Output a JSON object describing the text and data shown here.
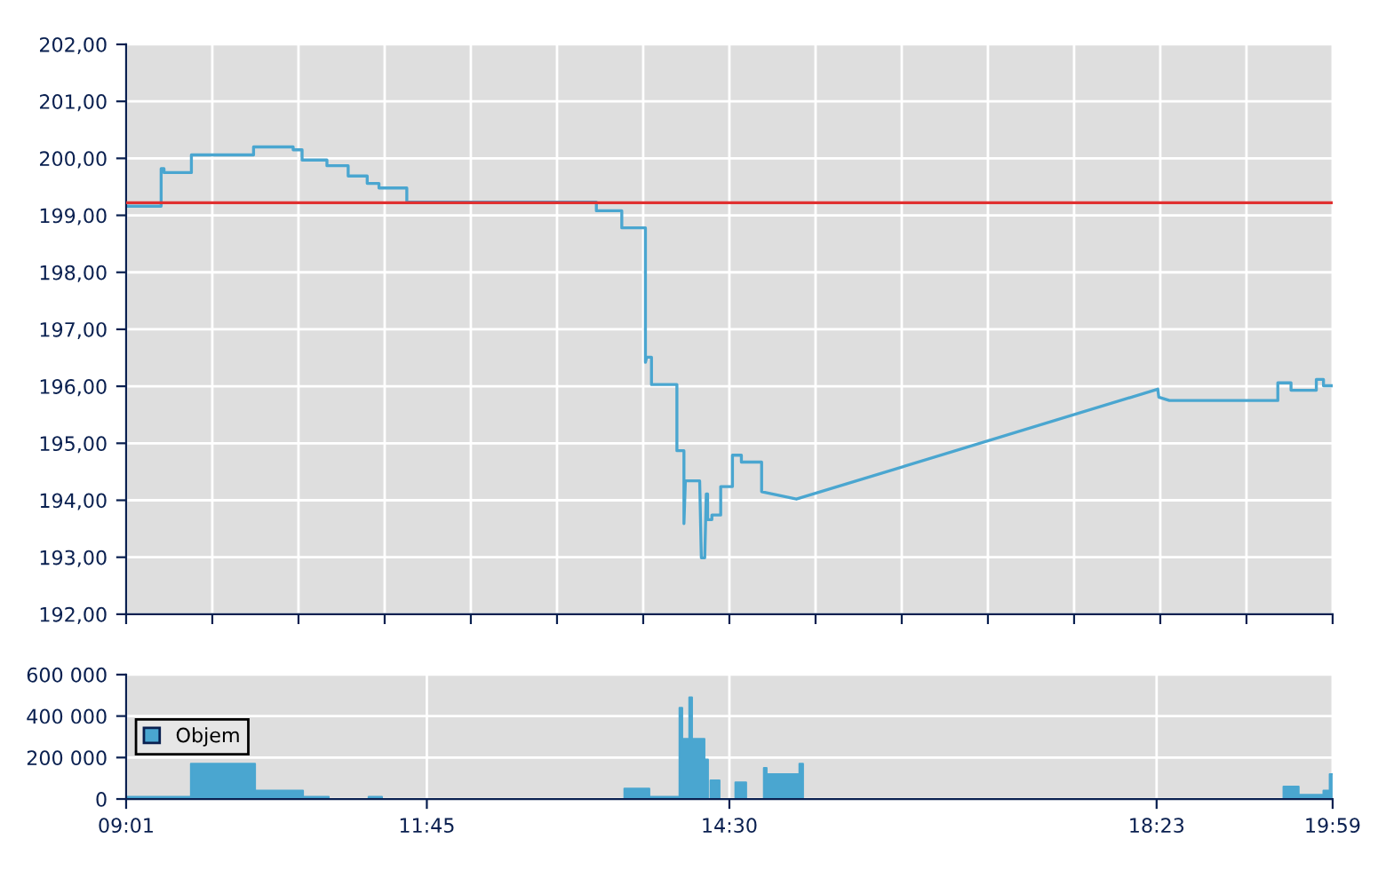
{
  "chart_data": [
    {
      "type": "line",
      "xlim": [
        9.0167,
        19.9833
      ],
      "xticks": [
        {
          "value": 9.0167,
          "label": null
        },
        {
          "value": 9.8,
          "label": null
        },
        {
          "value": 10.5833,
          "label": null
        },
        {
          "value": 11.3667,
          "label": null
        },
        {
          "value": 12.15,
          "label": null
        },
        {
          "value": 12.9333,
          "label": null
        },
        {
          "value": 13.7167,
          "label": null
        },
        {
          "value": 14.5,
          "label": null
        },
        {
          "value": 15.2833,
          "label": null
        },
        {
          "value": 16.0667,
          "label": null
        },
        {
          "value": 16.85,
          "label": null
        },
        {
          "value": 17.6333,
          "label": null
        },
        {
          "value": 18.4167,
          "label": null
        },
        {
          "value": 19.2,
          "label": null
        },
        {
          "value": 19.9833,
          "label": null
        }
      ],
      "ylim": [
        192,
        202
      ],
      "yticks": [
        {
          "value": 192,
          "label": "192,00"
        },
        {
          "value": 193,
          "label": "193,00"
        },
        {
          "value": 194,
          "label": "194,00"
        },
        {
          "value": 195,
          "label": "195,00"
        },
        {
          "value": 196,
          "label": "196,00"
        },
        {
          "value": 197,
          "label": "197,00"
        },
        {
          "value": 198,
          "label": "198,00"
        },
        {
          "value": 199,
          "label": "199,00"
        },
        {
          "value": 200,
          "label": "200,00"
        },
        {
          "value": 201,
          "label": "201,00"
        },
        {
          "value": 202,
          "label": "202,00"
        }
      ],
      "tick_labels": "y",
      "grid": true,
      "legend": false,
      "ref_lines": [
        {
          "axis": "y",
          "value": 199.22,
          "color": "#e03030"
        }
      ],
      "series": [
        {
          "color": "#4aa6d0",
          "x": [
            9.017,
            9.335,
            9.335,
            9.361,
            9.361,
            9.61,
            9.61,
            10.175,
            10.175,
            10.535,
            10.535,
            10.616,
            10.616,
            10.842,
            10.842,
            11.035,
            11.035,
            11.208,
            11.208,
            11.315,
            11.315,
            11.568,
            11.568,
            13.291,
            13.291,
            13.522,
            13.522,
            13.737,
            13.737,
            13.748,
            13.792,
            13.792,
            14.023,
            14.023,
            14.087,
            14.087,
            14.1,
            14.23,
            14.245,
            14.276,
            14.29,
            14.302,
            14.302,
            14.341,
            14.341,
            14.421,
            14.421,
            14.528,
            14.528,
            14.609,
            14.609,
            14.793,
            14.793,
            15.109,
            18.394,
            18.403,
            18.5,
            19.485,
            19.485,
            19.605,
            19.605,
            19.835,
            19.835,
            19.9,
            19.9,
            19.983
          ],
          "values": [
            199.16,
            199.16,
            199.82,
            199.82,
            199.75,
            199.75,
            200.06,
            200.06,
            200.2,
            200.2,
            200.15,
            200.15,
            199.97,
            199.97,
            199.87,
            199.87,
            199.69,
            199.69,
            199.56,
            199.56,
            199.48,
            199.48,
            199.23,
            199.23,
            199.08,
            199.08,
            198.78,
            198.78,
            196.42,
            196.51,
            196.51,
            196.03,
            196.03,
            194.87,
            194.87,
            193.59,
            194.34,
            194.34,
            192.99,
            192.99,
            194.11,
            194.11,
            193.66,
            193.66,
            193.74,
            193.74,
            194.24,
            194.24,
            194.79,
            194.79,
            194.67,
            194.67,
            194.15,
            194.02,
            195.95,
            195.81,
            195.75,
            195.75,
            196.06,
            196.06,
            195.93,
            195.93,
            196.12,
            196.12,
            196.01,
            196.01
          ]
        }
      ]
    },
    {
      "type": "area",
      "xlim": [
        9.0167,
        19.9833
      ],
      "xticks": [
        {
          "value": 9.0167,
          "label": "09:01"
        },
        {
          "value": 11.75,
          "label": "11:45"
        },
        {
          "value": 14.5,
          "label": "14:30"
        },
        {
          "value": 18.3833,
          "label": "18:23"
        },
        {
          "value": 19.9833,
          "label": "19:59"
        }
      ],
      "ylim": [
        0,
        600000
      ],
      "yticks": [
        {
          "value": 0,
          "label": "0"
        },
        {
          "value": 200000,
          "label": "200 000"
        },
        {
          "value": 400000,
          "label": "400 000"
        },
        {
          "value": 600000,
          "label": "600 000"
        }
      ],
      "grid": true,
      "legend": "left",
      "series": [
        {
          "name": "Objem",
          "color": "#4aa6d0",
          "x": [
            9.017,
            9.606,
            9.606,
            10.188,
            10.188,
            10.624,
            10.624,
            10.858,
            10.858,
            11.221,
            11.221,
            11.342,
            11.342,
            13.546,
            13.546,
            13.772,
            13.772,
            14.047,
            14.047,
            14.071,
            14.071,
            14.136,
            14.136,
            14.16,
            14.16,
            14.273,
            14.273,
            14.305,
            14.305,
            14.329,
            14.329,
            14.41,
            14.41,
            14.555,
            14.555,
            14.652,
            14.652,
            14.814,
            14.814,
            14.838,
            14.838,
            15.137,
            15.137,
            15.169,
            15.169,
            19.537,
            19.537,
            19.674,
            19.674,
            19.9,
            19.9,
            19.957,
            19.957,
            19.983
          ],
          "values": [
            10000,
            10000,
            170000,
            170000,
            40000,
            40000,
            10000,
            10000,
            0,
            0,
            10000,
            10000,
            0,
            0,
            50000,
            50000,
            10000,
            10000,
            440000,
            440000,
            290000,
            290000,
            490000,
            490000,
            290000,
            290000,
            190000,
            190000,
            0,
            0,
            90000,
            90000,
            0,
            0,
            80000,
            80000,
            0,
            0,
            150000,
            150000,
            120000,
            120000,
            170000,
            170000,
            0,
            0,
            60000,
            60000,
            20000,
            20000,
            40000,
            40000,
            120000,
            120000
          ]
        }
      ]
    }
  ]
}
